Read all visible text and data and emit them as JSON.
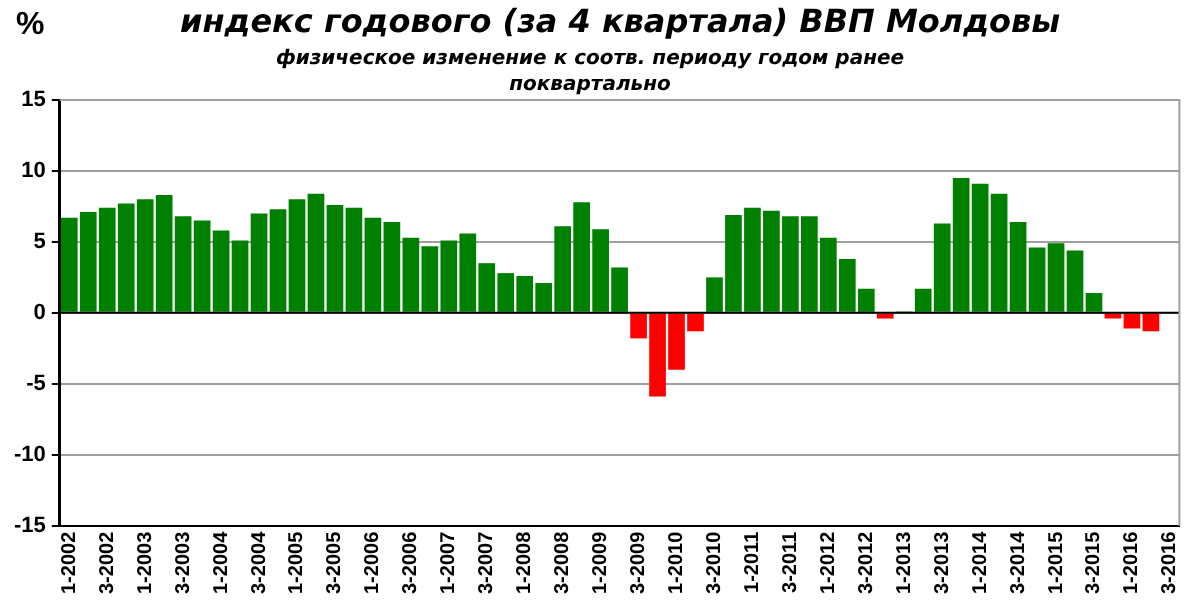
{
  "chart_data": {
    "type": "bar",
    "title": "индекс годового (за 4 квартала) ВВП Молдовы",
    "subtitle": "физическое изменение к соотв. периоду годом ранее поквартально",
    "ylabel": "%",
    "categories": [
      "1-2002",
      null,
      "3-2002",
      null,
      "1-2003",
      null,
      "3-2003",
      null,
      "1-2004",
      null,
      "3-2004",
      null,
      "1-2005",
      null,
      "3-2005",
      null,
      "1-2006",
      null,
      "3-2006",
      null,
      "1-2007",
      null,
      "3-2007",
      null,
      "1-2008",
      null,
      "3-2008",
      null,
      "1-2009",
      null,
      "3-2009",
      null,
      "1-2010",
      null,
      "3-2010",
      null,
      "1-2011",
      null,
      "3-2011",
      null,
      "1-2012",
      null,
      "3-2012",
      null,
      "1-2013",
      null,
      "3-2013",
      null,
      "1-2014",
      null,
      "3-2014",
      null,
      "1-2015",
      null,
      "3-2015",
      null,
      "1-2016",
      null,
      "3-2016"
    ],
    "values": [
      6.7,
      7.1,
      7.4,
      7.7,
      8.0,
      8.3,
      6.8,
      6.5,
      5.8,
      5.1,
      7.0,
      7.3,
      8.0,
      8.4,
      7.6,
      7.4,
      6.7,
      6.4,
      5.3,
      4.7,
      5.1,
      5.6,
      3.5,
      2.8,
      2.6,
      2.1,
      6.1,
      7.8,
      5.9,
      3.2,
      -1.8,
      -5.9,
      -4.0,
      -1.3,
      2.5,
      6.9,
      7.4,
      7.2,
      6.8,
      6.8,
      5.3,
      3.8,
      1.7,
      -0.4,
      0.1,
      1.7,
      6.3,
      9.5,
      9.1,
      8.4,
      6.4,
      4.6,
      4.9,
      4.4,
      1.4,
      -0.4,
      -1.1,
      -1.3,
      null
    ],
    "colors": [
      "#008000",
      "#008000",
      "#008000",
      "#008000",
      "#008000",
      "#008000",
      "#008000",
      "#008000",
      "#008000",
      "#008000",
      "#008000",
      "#008000",
      "#008000",
      "#008000",
      "#008000",
      "#008000",
      "#008000",
      "#008000",
      "#008000",
      "#008000",
      "#008000",
      "#008000",
      "#008000",
      "#008000",
      "#008000",
      "#008000",
      "#008000",
      "#008000",
      "#008000",
      "#008000",
      "#ff0000",
      "#ff0000",
      "#ff0000",
      "#ff0000",
      "#008000",
      "#008000",
      "#008000",
      "#008000",
      "#008000",
      "#008000",
      "#008000",
      "#008000",
      "#008000",
      "#ff0000",
      "#008000",
      "#008000",
      "#008000",
      "#008000",
      "#008000",
      "#008000",
      "#008000",
      "#008000",
      "#008000",
      "#008000",
      "#008000",
      "#ff0000",
      "#ff0000",
      "#ff0000",
      "#008000"
    ],
    "ylim": [
      -15,
      15
    ],
    "yticks": [
      -15,
      -10,
      -5,
      0,
      5,
      10,
      15
    ],
    "grid": "y",
    "legend": false
  }
}
